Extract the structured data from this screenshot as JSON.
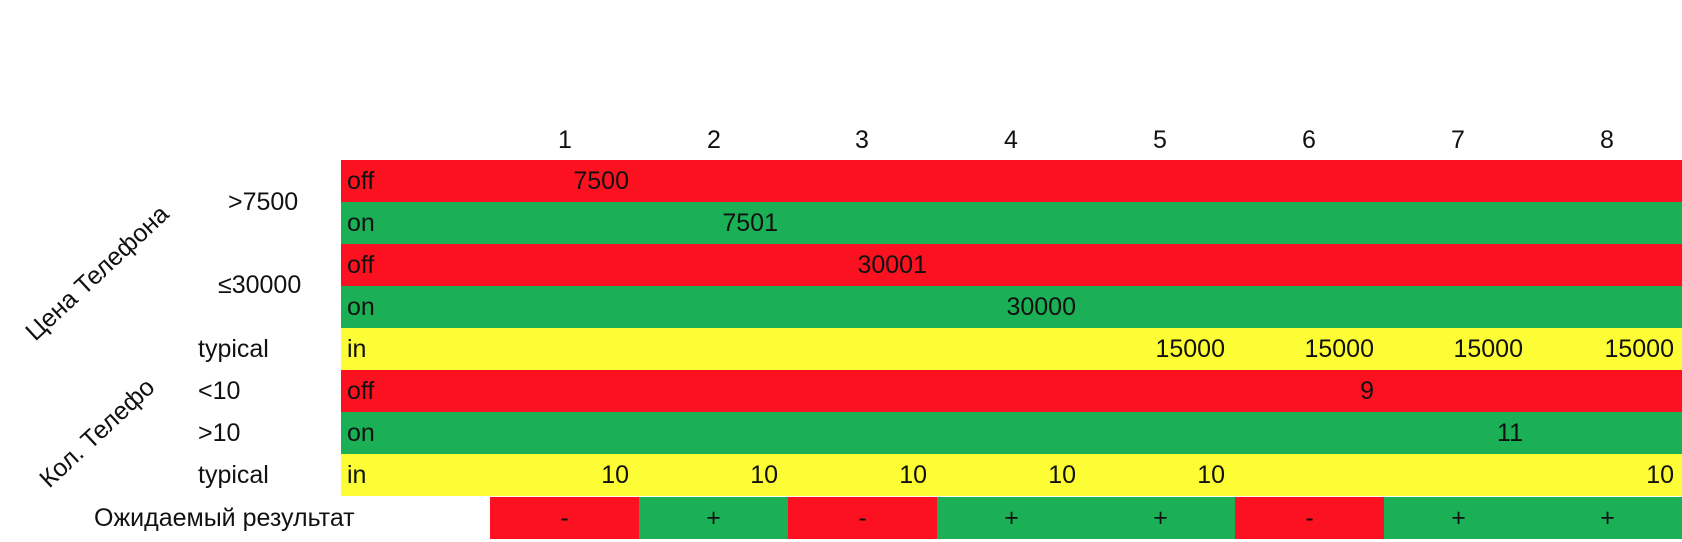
{
  "columns": [
    "1",
    "2",
    "3",
    "4",
    "5",
    "6",
    "7",
    "8"
  ],
  "group_labels": {
    "price": "Цена Телефона",
    "quantity": "Кол. Телефо"
  },
  "row_labels": {
    "gt7500": ">7500",
    "le30000": "≤30000",
    "typical_price": "typical",
    "lt10": "<10",
    "gt10": ">10",
    "typical_qty": "typical"
  },
  "rows": [
    {
      "state": "off",
      "color": "#fb111f",
      "values": [
        "7500",
        "",
        "",
        "",
        "",
        "",
        "",
        ""
      ]
    },
    {
      "state": "on",
      "color": "#1bb055",
      "values": [
        "",
        "7501",
        "",
        "",
        "",
        "",
        "",
        ""
      ]
    },
    {
      "state": "off",
      "color": "#fb111f",
      "values": [
        "",
        "",
        "30001",
        "",
        "",
        "",
        "",
        ""
      ]
    },
    {
      "state": "on",
      "color": "#1bb055",
      "values": [
        "",
        "",
        "",
        "30000",
        "",
        "",
        "",
        ""
      ]
    },
    {
      "state": "in",
      "color": "#fdfd35",
      "values": [
        "",
        "",
        "",
        "",
        "15000",
        "15000",
        "15000",
        "15000"
      ]
    },
    {
      "state": "off",
      "color": "#fb111f",
      "values": [
        "",
        "",
        "",
        "",
        "",
        "9",
        "",
        ""
      ]
    },
    {
      "state": "on",
      "color": "#1bb055",
      "values": [
        "",
        "",
        "",
        "",
        "",
        "",
        "11",
        ""
      ]
    },
    {
      "state": "in",
      "color": "#fdfd35",
      "values": [
        "10",
        "10",
        "10",
        "10",
        "10",
        "",
        "",
        "10"
      ]
    }
  ],
  "expected": {
    "label": "Ожидаемый результат",
    "values": [
      "-",
      "+",
      "-",
      "+",
      "+",
      "-",
      "+",
      "+"
    ]
  },
  "colors": {
    "red": "#fb111f",
    "green": "#1bb055",
    "yellow": "#fdfd35"
  }
}
